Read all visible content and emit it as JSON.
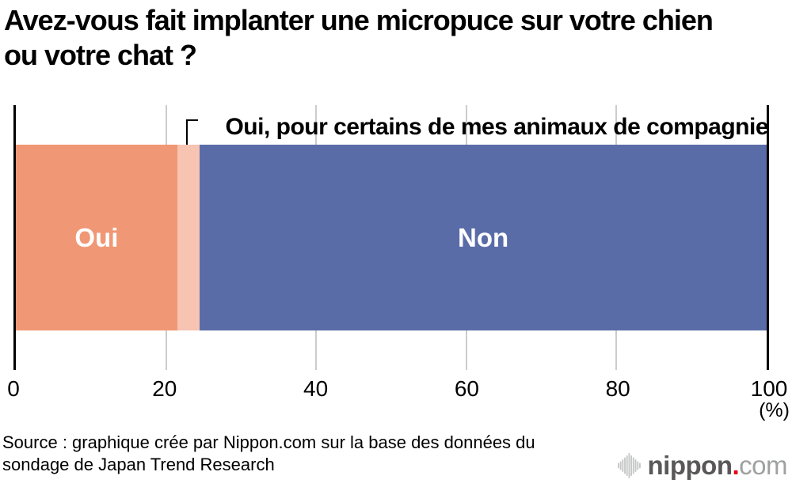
{
  "title": "Avez-vous fait implanter une micropuce sur votre chien ou votre chat ?",
  "annotation": {
    "label": "Oui, pour certains de mes animaux de compagnie"
  },
  "chart_data": {
    "type": "bar",
    "orientation": "horizontal",
    "stacked": true,
    "title": "Avez-vous fait implanter une micropuce sur votre chien ou votre chat ?",
    "categories": [
      "Oui",
      "Oui, pour certains de mes animaux de compagnie",
      "Non"
    ],
    "values": [
      21.5,
      3.0,
      75.5
    ],
    "colors": [
      "#F09775",
      "#F6C4B1",
      "#5A6CA8"
    ],
    "bar_labels": [
      "Oui",
      "",
      "Non"
    ],
    "bar_label_color": "#ffffff",
    "xlim": [
      0,
      100
    ],
    "x_ticks": [
      0,
      20,
      40,
      60,
      80,
      100
    ],
    "x_tick_labels": [
      "0",
      "20",
      "40",
      "60",
      "80",
      "100"
    ],
    "x_unit": "(%)",
    "grid": "vertical-light-gray",
    "axis_line_color": "#000000",
    "gridline_color": "#cccccc",
    "legend_position": "none"
  },
  "source": {
    "line1": "Source : graphique crée par Nippon.com sur la base des données du",
    "line2": "sondage de Japan Trend Research"
  },
  "logo": {
    "brand": "nippon",
    "dot": ".",
    "tld": "com",
    "brand_color": "#595757",
    "dot_color": "#e60012",
    "tld_color": "#9fa0a0",
    "wave_color": "#c6c7c7"
  }
}
